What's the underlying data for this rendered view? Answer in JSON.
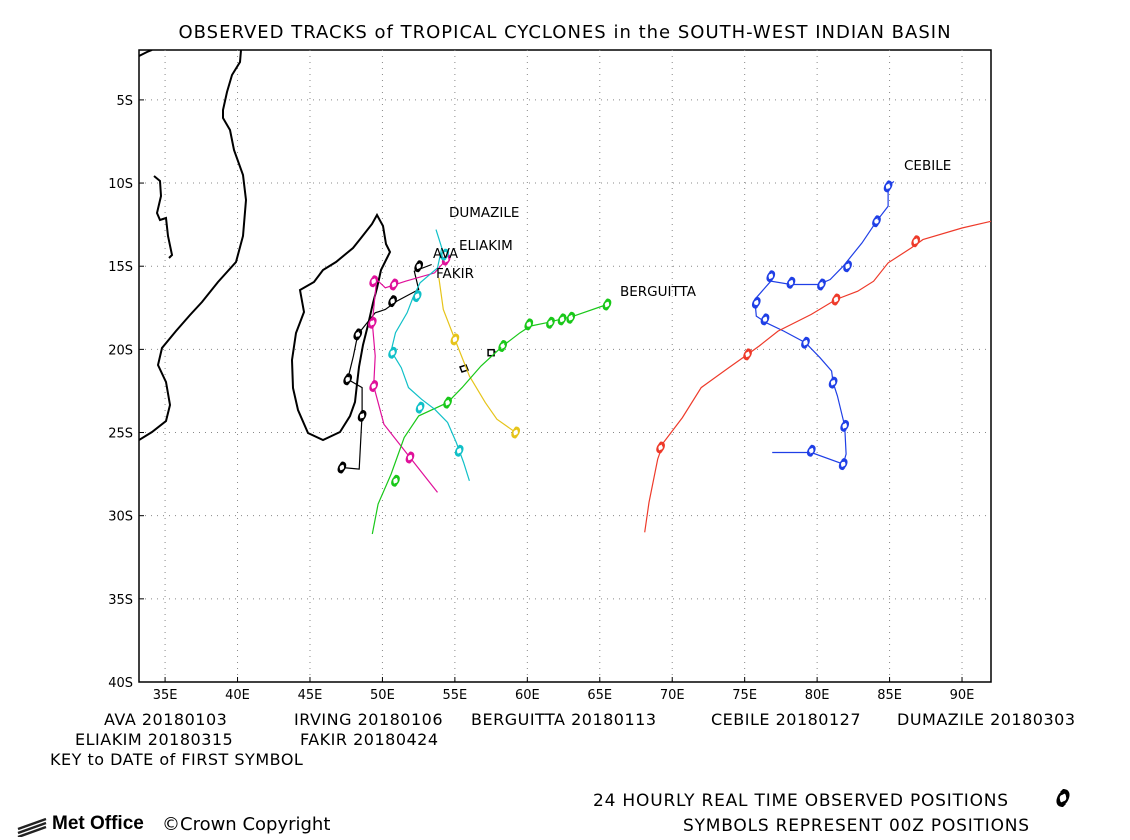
{
  "title": "OBSERVED TRACKS of TROPICAL CYCLONES in the SOUTH-WEST INDIAN BASIN",
  "map": {
    "lat_labels": [
      "5S",
      "10S",
      "15S",
      "20S",
      "25S",
      "30S",
      "35S",
      "40S"
    ],
    "lat_values": [
      -5,
      -10,
      -15,
      -20,
      -25,
      -30,
      -35,
      -40
    ],
    "lon_labels": [
      "35E",
      "40E",
      "45E",
      "50E",
      "55E",
      "60E",
      "65E",
      "70E",
      "75E",
      "80E",
      "85E",
      "90E"
    ],
    "lon_values": [
      35,
      40,
      45,
      50,
      55,
      60,
      65,
      70,
      75,
      80,
      85,
      90
    ],
    "lon_range": [
      33.2,
      92
    ],
    "lat_range": [
      -40,
      -2
    ],
    "grid": "dotted",
    "colors": {
      "AVA": "#000000",
      "IRVING": "#000000",
      "ELIAKIM": "#e0109a",
      "FAKIR": "#e6c41a",
      "BERGUITTA": "#19c819",
      "CEBILE": "#1f3fe6",
      "DUMAZILE": "#10c0c8",
      "unnamed_red": "#ee3a2a"
    }
  },
  "storm_labels": {
    "cebile": "CEBILE",
    "dumazile": "DUMAZILE",
    "eliakim": "ELIAKIM",
    "ava": "AVA",
    "fakir": "FAKIR",
    "berguitta": "BERGUITTA"
  },
  "key": {
    "row1": [
      "AVA 20180103",
      "IRVING 20180106",
      "BERGUITTA 20180113",
      "CEBILE 20180127",
      "DUMAZILE 20180303"
    ],
    "row2": [
      "ELIAKIM 20180315",
      "FAKIR 20180424"
    ],
    "note": "KEY to DATE of FIRST SYMBOL"
  },
  "footer": {
    "line1": "24 HOURLY REAL TIME OBSERVED POSITIONS",
    "line2": "SYMBOLS REPRESENT 00Z POSITIONS",
    "logo": "Met Office",
    "copyright": "Crown Copyright",
    "copyright_symbol": "©",
    "symbol_icon": "tropical-cyclone-symbol"
  },
  "tracks": [
    {
      "id": "AVA",
      "color_key": "AVA",
      "points": [
        [
          53.4,
          -14.9
        ],
        [
          52.2,
          -15.3
        ],
        [
          52.5,
          -16.4
        ],
        [
          51.0,
          -17.1
        ],
        [
          50.2,
          -17.6
        ],
        [
          49.5,
          -17.8
        ],
        [
          48.3,
          -19.1
        ],
        [
          48.0,
          -20.4
        ],
        [
          47.6,
          -21.8
        ],
        [
          48.6,
          -22.3
        ],
        [
          48.6,
          -23.9
        ],
        [
          48.4,
          -27.2
        ],
        [
          47.2,
          -27.1
        ]
      ],
      "symbols": [
        [
          52.5,
          -15.0
        ],
        [
          50.7,
          -17.1
        ],
        [
          48.3,
          -19.1
        ],
        [
          47.6,
          -21.8
        ],
        [
          48.6,
          -24.0
        ],
        [
          47.2,
          -27.1
        ]
      ]
    },
    {
      "id": "IRVING",
      "color_key": "IRVING",
      "points": [
        [
          57.5,
          -20.3
        ],
        [
          57.8,
          -20.1
        ]
      ],
      "symbols": [],
      "box": [
        57.5,
        -20.2
      ]
    },
    {
      "id": "ELIAKIM",
      "color_key": "ELIAKIM",
      "points": [
        [
          54.4,
          -14.6
        ],
        [
          53.6,
          -15.4
        ],
        [
          51.6,
          -15.9
        ],
        [
          50.2,
          -16.3
        ],
        [
          49.6,
          -15.8
        ],
        [
          49.3,
          -18.4
        ],
        [
          49.5,
          -20.4
        ],
        [
          49.4,
          -22.2
        ],
        [
          50.1,
          -24.5
        ],
        [
          51.9,
          -26.5
        ],
        [
          53.8,
          -28.6
        ]
      ],
      "symbols": [
        [
          54.4,
          -14.6
        ],
        [
          50.8,
          -16.1
        ],
        [
          49.4,
          -15.9
        ],
        [
          49.3,
          -18.4
        ],
        [
          49.4,
          -22.2
        ],
        [
          51.9,
          -26.5
        ]
      ]
    },
    {
      "id": "FAKIR",
      "color_key": "FAKIR",
      "points": [
        [
          53.9,
          -15.7
        ],
        [
          54.2,
          -17.6
        ],
        [
          55.0,
          -19.4
        ],
        [
          56.0,
          -21.6
        ],
        [
          57.1,
          -23.2
        ],
        [
          57.9,
          -24.2
        ],
        [
          59.2,
          -25.0
        ]
      ],
      "symbols": [
        [
          55.0,
          -19.4
        ],
        [
          59.2,
          -25.0
        ]
      ]
    },
    {
      "id": "BERGUITTA",
      "color_key": "BERGUITTA",
      "points": [
        [
          65.5,
          -17.3
        ],
        [
          63.2,
          -18.0
        ],
        [
          61.3,
          -18.4
        ],
        [
          60.2,
          -18.6
        ],
        [
          59.5,
          -19.0
        ],
        [
          58.3,
          -19.8
        ],
        [
          56.8,
          -21.0
        ],
        [
          55.5,
          -22.3
        ],
        [
          54.5,
          -23.2
        ],
        [
          52.5,
          -24.0
        ],
        [
          51.5,
          -25.3
        ],
        [
          50.6,
          -27.5
        ],
        [
          49.7,
          -29.3
        ],
        [
          49.3,
          -31.1
        ]
      ],
      "symbols": [
        [
          65.5,
          -17.3
        ],
        [
          63.0,
          -18.1
        ],
        [
          62.4,
          -18.2
        ],
        [
          61.6,
          -18.4
        ],
        [
          60.1,
          -18.5
        ],
        [
          58.3,
          -19.8
        ],
        [
          54.5,
          -23.2
        ],
        [
          50.9,
          -27.9
        ]
      ]
    },
    {
      "id": "CEBILE",
      "color_key": "CEBILE",
      "points": [
        [
          85.3,
          -9.9
        ],
        [
          84.9,
          -10.2
        ],
        [
          84.9,
          -11.4
        ],
        [
          84.1,
          -12.3
        ],
        [
          83.1,
          -13.6
        ],
        [
          81.8,
          -15.0
        ],
        [
          80.9,
          -15.8
        ],
        [
          80.1,
          -16.1
        ],
        [
          78.2,
          -16.1
        ],
        [
          76.8,
          -15.9
        ],
        [
          76.3,
          -16.4
        ],
        [
          75.7,
          -17.0
        ],
        [
          75.8,
          -18.0
        ],
        [
          76.5,
          -18.4
        ],
        [
          77.7,
          -18.9
        ],
        [
          79.2,
          -19.6
        ],
        [
          80.2,
          -20.5
        ],
        [
          81.0,
          -21.3
        ],
        [
          81.1,
          -22.0
        ],
        [
          81.4,
          -22.8
        ],
        [
          81.9,
          -24.6
        ],
        [
          82.0,
          -26.3
        ],
        [
          81.8,
          -26.9
        ],
        [
          79.6,
          -26.2
        ],
        [
          77.7,
          -26.2
        ],
        [
          76.9,
          -26.2
        ]
      ],
      "symbols": [
        [
          84.9,
          -10.2
        ],
        [
          84.1,
          -12.3
        ],
        [
          82.1,
          -15.0
        ],
        [
          80.3,
          -16.1
        ],
        [
          78.2,
          -16.0
        ],
        [
          76.8,
          -15.6
        ],
        [
          75.8,
          -17.2
        ],
        [
          76.4,
          -18.2
        ],
        [
          79.2,
          -19.6
        ],
        [
          81.1,
          -22.0
        ],
        [
          81.9,
          -24.6
        ],
        [
          81.8,
          -26.9
        ],
        [
          79.6,
          -26.1
        ]
      ]
    },
    {
      "id": "DUMAZILE",
      "color_key": "DUMAZILE",
      "points": [
        [
          53.7,
          -12.8
        ],
        [
          54.1,
          -13.9
        ],
        [
          53.8,
          -15.1
        ],
        [
          52.6,
          -16.0
        ],
        [
          52.1,
          -16.9
        ],
        [
          51.7,
          -17.8
        ],
        [
          50.9,
          -19.0
        ],
        [
          50.6,
          -20.1
        ],
        [
          51.3,
          -21.1
        ],
        [
          51.8,
          -22.3
        ],
        [
          52.7,
          -23.0
        ],
        [
          53.6,
          -23.6
        ],
        [
          54.5,
          -24.4
        ],
        [
          55.1,
          -25.6
        ],
        [
          55.6,
          -26.8
        ],
        [
          56.0,
          -27.9
        ]
      ],
      "symbols": [
        [
          54.3,
          -14.3
        ],
        [
          52.4,
          -16.8
        ],
        [
          50.7,
          -20.2
        ],
        [
          52.6,
          -23.5
        ],
        [
          55.3,
          -26.1
        ]
      ]
    },
    {
      "id": "RED",
      "color_key": "unnamed_red",
      "points": [
        [
          92.0,
          -12.3
        ],
        [
          90.0,
          -12.7
        ],
        [
          87.3,
          -13.4
        ],
        [
          86.5,
          -13.9
        ],
        [
          84.9,
          -14.8
        ],
        [
          83.9,
          -15.9
        ],
        [
          82.8,
          -16.5
        ],
        [
          81.3,
          -17.0
        ],
        [
          79.6,
          -17.9
        ],
        [
          77.3,
          -18.9
        ],
        [
          76.0,
          -19.8
        ],
        [
          75.2,
          -20.3
        ],
        [
          73.9,
          -21.1
        ],
        [
          72.0,
          -22.3
        ],
        [
          70.7,
          -24.1
        ],
        [
          69.4,
          -25.6
        ],
        [
          69.0,
          -26.6
        ],
        [
          68.4,
          -29.2
        ],
        [
          68.1,
          -31.0
        ]
      ],
      "symbols": [
        [
          86.8,
          -13.5
        ],
        [
          81.3,
          -17.0
        ],
        [
          75.2,
          -20.3
        ],
        [
          69.2,
          -25.9
        ]
      ]
    }
  ]
}
